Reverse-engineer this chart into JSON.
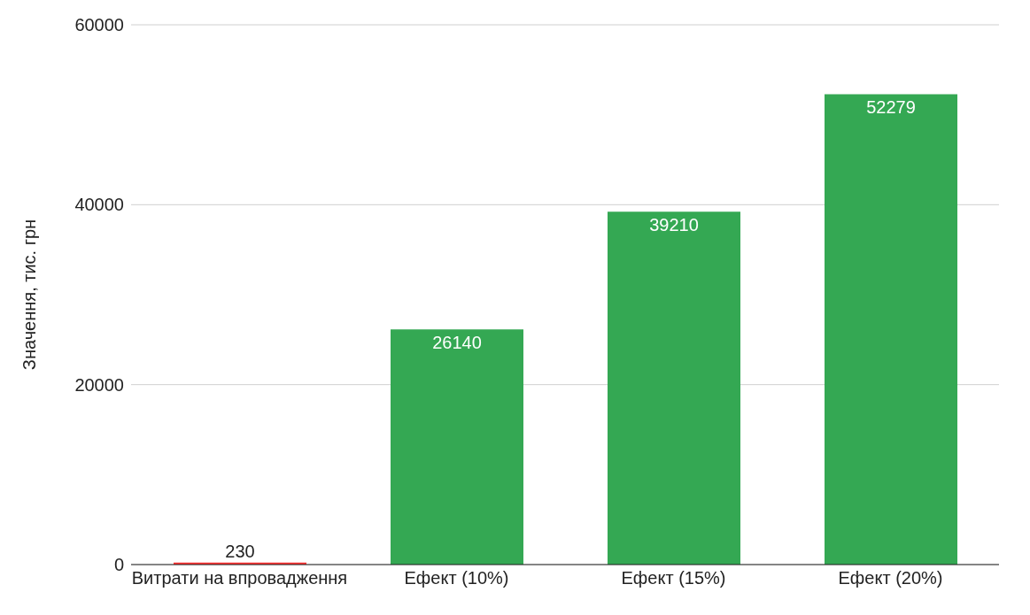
{
  "chart_data": {
    "type": "bar",
    "ylabel": "Значення, тис. грн",
    "categories": [
      "Витрати на впровадження",
      "Ефект (10%)",
      "Ефект (15%)",
      "Ефект (20%)"
    ],
    "values": [
      230,
      26140,
      39210,
      52279
    ],
    "colors": [
      "#ff3333",
      "#34a853",
      "#34a853",
      "#34a853"
    ],
    "ylim": [
      0,
      60000
    ],
    "yticks": [
      0,
      20000,
      40000,
      60000
    ],
    "grid": "y",
    "data_labels": true
  }
}
